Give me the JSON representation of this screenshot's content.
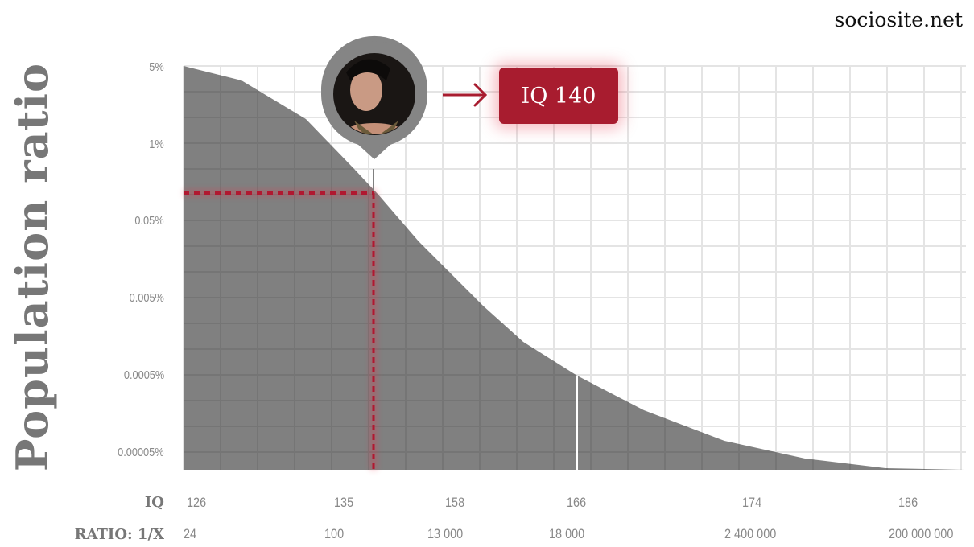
{
  "site": "sociosite.net",
  "chart_data": {
    "type": "area",
    "ylabel": "Population ratio",
    "y_scale": "log",
    "y_ticks": [
      "5%",
      "1%",
      "0.05%",
      "0.005%",
      "0.0005%",
      "0.00005%"
    ],
    "x_row_labels": {
      "iq": "IQ",
      "ratio": "RATIO: 1/X"
    },
    "x_ticks": [
      {
        "iq": "126",
        "ratio": "24"
      },
      {
        "iq": "135",
        "ratio": "100"
      },
      {
        "iq": "158",
        "ratio": "13 000"
      },
      {
        "iq": "166",
        "ratio": "18 000"
      },
      {
        "iq": "174",
        "ratio": "2 400 000"
      },
      {
        "iq": "186",
        "ratio": "200 000 000"
      }
    ],
    "grid": true,
    "highlight": {
      "label": "IQ 140",
      "iq": 140
    },
    "colors": {
      "area": "#808080",
      "highlight": "#a81c2f",
      "grid": "#e4e4e4"
    }
  }
}
